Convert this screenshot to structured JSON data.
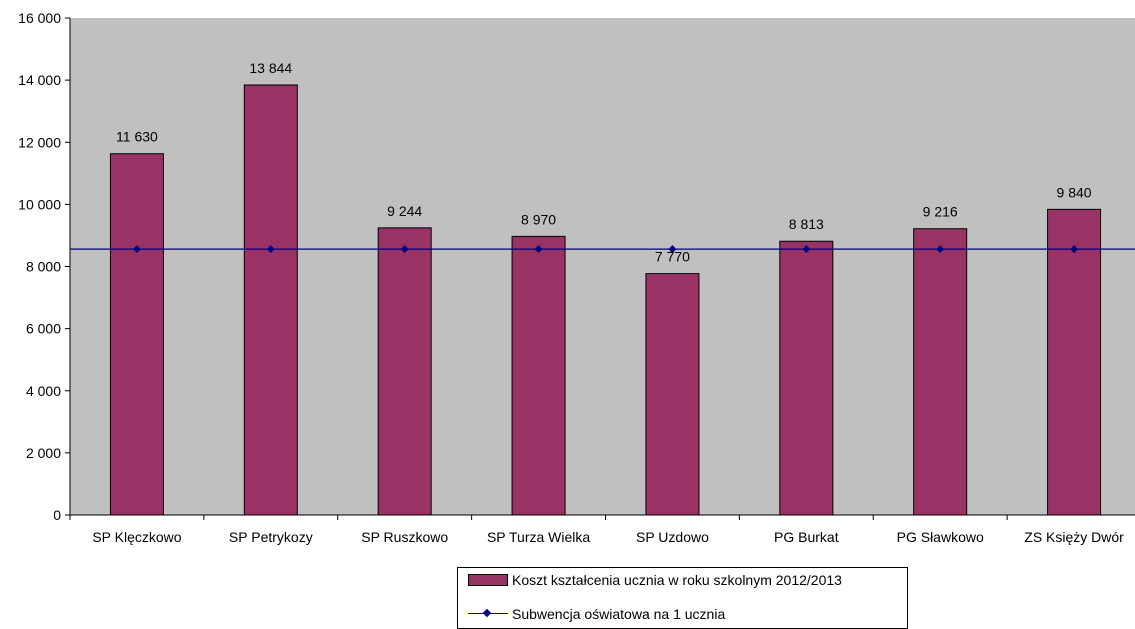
{
  "chart_data": {
    "type": "bar",
    "categories": [
      "SP Klęczkowo",
      "SP Petrykozy",
      "SP Ruszkowo",
      "SP Turza Wielka",
      "SP Uzdowo",
      "PG Burkat",
      "PG Sławkowo",
      "ZS Księży Dwór"
    ],
    "series": [
      {
        "name": "Koszt kształcenia ucznia w roku szkolnym 2012/2013",
        "type": "bar",
        "values": [
          11630,
          13844,
          9244,
          8970,
          7770,
          8813,
          9216,
          9840
        ],
        "labels": [
          "11 630",
          "13 844",
          "9 244",
          "8 970",
          "7 770",
          "8 813",
          "9 216",
          "9 840"
        ],
        "color": "#993366"
      },
      {
        "name": "Subwencja oświatowa na 1 ucznia",
        "type": "line",
        "values": [
          8560,
          8560,
          8560,
          8560,
          8560,
          8560,
          8560,
          8560
        ],
        "color": "#000080"
      }
    ],
    "ylim": [
      0,
      16000
    ],
    "yticks": [
      0,
      2000,
      4000,
      6000,
      8000,
      10000,
      12000,
      14000,
      16000
    ],
    "ytick_labels": [
      "0",
      "2 000",
      "4 000",
      "6 000",
      "8 000",
      "10 000",
      "12 000",
      "14 000",
      "16 000"
    ],
    "plot_background": "#c0c0c0",
    "grid": false,
    "legend_position": "bottom"
  }
}
